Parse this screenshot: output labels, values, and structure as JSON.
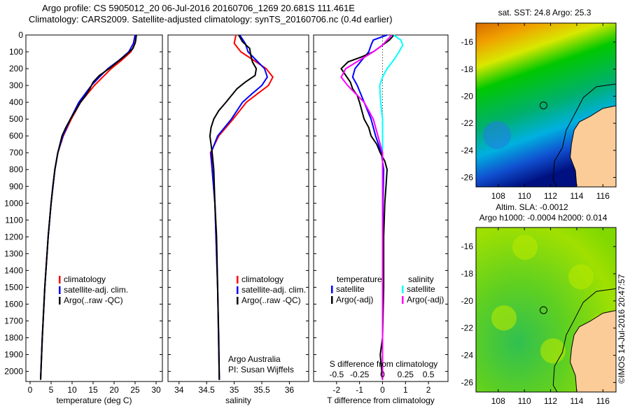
{
  "title": {
    "line1": "Argo profile: CS 5905012_20 06-Jul-2016 20160706_1269 20.681S 111.461E",
    "line2": "Climatology: CARS2009. Satellite-adjusted climatology: synTS_20160706.nc (0.4d earlier)"
  },
  "credit": "©IMOS 14-Jul-2016 20:47:57",
  "colors": {
    "clim": "#ff0000",
    "sat": "#0000ff",
    "argo": "#000000",
    "sal_sat": "#00ffff",
    "sal_argo": "#ff00ff"
  },
  "chart_data": [
    {
      "type": "line",
      "id": "temperature",
      "xlabel": "temperature (deg C)",
      "ylabel": "",
      "xlim": [
        -1,
        31.5
      ],
      "ylim": [
        2060,
        0
      ],
      "xticks": [
        "0",
        "5",
        "10",
        "15",
        "20",
        "25",
        "30"
      ],
      "xtick_values": [
        0,
        5,
        10,
        15,
        20,
        25,
        30
      ],
      "yticks": [
        "0",
        "100",
        "200",
        "300",
        "400",
        "500",
        "600",
        "700",
        "800",
        "900",
        "1000",
        "1100",
        "1200",
        "1300",
        "1400",
        "1500",
        "1600",
        "1700",
        "1800",
        "1900",
        "2000"
      ],
      "legend": [
        "climatology",
        "satellite-adj. clim.",
        "Argo(..raw -QC)"
      ],
      "series": [
        {
          "name": "climatology",
          "color": "#ff0000",
          "depth": [
            0,
            50,
            100,
            150,
            200,
            250,
            300,
            400,
            500,
            600,
            700,
            800,
            1000,
            1200,
            1500,
            1800,
            2050
          ],
          "values": [
            25.3,
            25.0,
            24.0,
            21.8,
            19.3,
            17.3,
            15.3,
            12.0,
            9.8,
            7.9,
            6.6,
            5.9,
            5.0,
            4.3,
            3.5,
            2.9,
            2.5
          ]
        },
        {
          "name": "satellite-adj. clim.",
          "color": "#0000ff",
          "depth": [
            0,
            50,
            100,
            150,
            200,
            250,
            300,
            400,
            500,
            600,
            700,
            800,
            1000,
            1200,
            1500,
            1800,
            2050
          ],
          "values": [
            25.0,
            24.6,
            23.5,
            21.2,
            18.5,
            16.5,
            14.6,
            11.6,
            9.6,
            7.8,
            6.6,
            5.9,
            5.0,
            4.3,
            3.5,
            2.9,
            2.5
          ]
        },
        {
          "name": "Argo(..raw -QC)",
          "color": "#000000",
          "depth": [
            0,
            40,
            80,
            120,
            160,
            200,
            240,
            280,
            320,
            360,
            400,
            450,
            500,
            550,
            600,
            650,
            700,
            800,
            900,
            1000,
            1200,
            1500,
            1800,
            2050
          ],
          "values": [
            25.3,
            25.1,
            24.5,
            22.8,
            20.8,
            18.8,
            16.5,
            15.0,
            14.2,
            13.2,
            12.0,
            10.8,
            9.6,
            8.5,
            7.6,
            7.1,
            6.6,
            5.9,
            5.4,
            5.0,
            4.3,
            3.5,
            2.9,
            2.5
          ]
        }
      ]
    },
    {
      "type": "line",
      "id": "salinity",
      "xlabel": "salinity",
      "ylabel": "",
      "xlim": [
        33.8,
        36.35
      ],
      "ylim": [
        2060,
        0
      ],
      "xticks": [
        "34",
        "34.5",
        "35",
        "35.5",
        "36"
      ],
      "xtick_values": [
        34,
        34.5,
        35,
        35.5,
        36
      ],
      "legend": [
        "climatology",
        "satellite-adj. clim.",
        "Argo(..raw -QC)"
      ],
      "annotation": [
        "Argo Australia",
        "PI: Susan Wijffels"
      ],
      "series": [
        {
          "name": "climatology",
          "color": "#ff0000",
          "depth": [
            0,
            50,
            100,
            150,
            200,
            250,
            300,
            350,
            400,
            500,
            600,
            700,
            800,
            1000,
            1500,
            2050
          ],
          "values": [
            35.03,
            35.0,
            35.12,
            35.35,
            35.58,
            35.7,
            35.62,
            35.42,
            35.22,
            34.98,
            34.72,
            34.57,
            34.6,
            34.65,
            34.7,
            34.73
          ]
        },
        {
          "name": "satellite-adj. clim.",
          "color": "#0000ff",
          "depth": [
            0,
            50,
            100,
            150,
            200,
            250,
            300,
            350,
            400,
            500,
            600,
            700,
            800,
            1000,
            1500,
            2050
          ],
          "values": [
            35.1,
            35.2,
            35.25,
            35.4,
            35.55,
            35.6,
            35.5,
            35.32,
            35.15,
            34.95,
            34.7,
            34.58,
            34.6,
            34.65,
            34.7,
            34.73
          ]
        },
        {
          "name": "Argo(..raw -QC)",
          "color": "#000000",
          "depth": [
            0,
            40,
            80,
            120,
            160,
            200,
            240,
            280,
            320,
            360,
            400,
            450,
            500,
            550,
            600,
            650,
            700,
            800,
            900,
            1000,
            1200,
            1500,
            1800,
            2050
          ],
          "values": [
            35.08,
            35.15,
            35.28,
            35.3,
            35.33,
            35.4,
            35.38,
            35.2,
            35.05,
            34.95,
            34.85,
            34.72,
            34.63,
            34.58,
            34.56,
            34.58,
            34.6,
            34.63,
            34.64,
            34.65,
            34.68,
            34.7,
            34.72,
            34.73
          ]
        }
      ]
    },
    {
      "type": "line",
      "id": "differences",
      "xlabel": "T difference from climatology",
      "x2label": "S difference from climatology",
      "xlim": [
        -3,
        2.85
      ],
      "ylim": [
        2060,
        0
      ],
      "xticks": [
        "-2",
        "-1",
        "0",
        "1",
        "2"
      ],
      "xtick_values": [
        -2,
        -1,
        0,
        1,
        2
      ],
      "x2ticks": [
        "-0.5",
        "-0.25",
        "0",
        "0.25",
        "0.5"
      ],
      "x2tick_values": [
        -0.5,
        -0.25,
        0,
        0.25,
        0.5
      ],
      "legend_headers": [
        "temperature",
        "salinity"
      ],
      "legend": [
        "satellite",
        "Argo(-adj)",
        "satellite",
        "Argo(-adj)"
      ],
      "series": [
        {
          "name": "T satellite",
          "color": "#0000ff",
          "scale": "T",
          "depth": [
            0,
            30,
            60,
            100,
            150,
            200,
            250,
            300,
            400,
            500,
            600,
            700,
            800,
            1000,
            1500,
            2050
          ],
          "values": [
            0.2,
            -0.4,
            -0.5,
            -0.6,
            -0.9,
            -1.2,
            -1.3,
            -1.1,
            -0.8,
            -0.5,
            -0.3,
            -0.05,
            0.05,
            0.02,
            0.0,
            0.0
          ]
        },
        {
          "name": "T Argo(-adj)",
          "color": "#000000",
          "scale": "T",
          "depth": [
            0,
            30,
            60,
            100,
            130,
            160,
            200,
            240,
            280,
            320,
            360,
            400,
            450,
            500,
            550,
            600,
            650,
            700,
            750,
            800,
            900,
            1000,
            1200,
            1500,
            1800,
            1900,
            2050
          ],
          "values": [
            0.5,
            0.3,
            0.0,
            -0.4,
            -0.9,
            -1.5,
            -1.8,
            -1.6,
            -1.4,
            -1.3,
            -1.1,
            -1.0,
            -0.9,
            -0.8,
            -0.6,
            -0.5,
            -0.25,
            -0.1,
            0.1,
            0.2,
            0.15,
            0.1,
            0.05,
            0.05,
            0.0,
            -0.1,
            0.0
          ]
        },
        {
          "name": "S satellite",
          "color": "#00ffff",
          "scale": "S",
          "depth": [
            0,
            30,
            60,
            100,
            150,
            200,
            250,
            300,
            400,
            500,
            700,
            1000,
            2050
          ],
          "values": [
            0.12,
            0.2,
            0.22,
            0.18,
            0.12,
            0.05,
            0.0,
            -0.03,
            -0.02,
            0.0,
            0.0,
            0.0,
            0.0
          ]
        },
        {
          "name": "S Argo(-adj)",
          "color": "#ff00ff",
          "scale": "S",
          "depth": [
            0,
            30,
            60,
            100,
            150,
            200,
            250,
            300,
            400,
            500,
            600,
            700,
            1000,
            2050
          ],
          "values": [
            0.1,
            0.05,
            0.0,
            -0.1,
            -0.25,
            -0.4,
            -0.45,
            -0.38,
            -0.2,
            -0.1,
            -0.05,
            0.0,
            0.0,
            0.0
          ]
        }
      ]
    },
    {
      "type": "heatmap",
      "id": "sst-map",
      "title": "sat. SST: 24.8 Argo: 25.3",
      "xlim": [
        106.3,
        117
      ],
      "ylim": [
        -26.7,
        -14.6
      ],
      "xticks": [
        "108",
        "110",
        "112",
        "114",
        "116"
      ],
      "xtick_values": [
        108,
        110,
        112,
        114,
        116
      ],
      "yticks": [
        "-16",
        "-18",
        "-20",
        "-22",
        "-24",
        "-26"
      ],
      "ytick_values": [
        -16,
        -18,
        -20,
        -22,
        -24,
        -26
      ],
      "argo_position": [
        111.461,
        -20.681
      ]
    },
    {
      "type": "heatmap",
      "id": "sla-map",
      "title": "Altim. SLA: -0.0012",
      "subtitle": "Argo h1000: -0.0004 h2000: 0.014",
      "xlim": [
        106.3,
        117
      ],
      "ylim": [
        -26.7,
        -14.6
      ],
      "xticks": [
        "108",
        "110",
        "112",
        "114",
        "116"
      ],
      "xtick_values": [
        108,
        110,
        112,
        114,
        116
      ],
      "yticks": [
        "-16",
        "-18",
        "-20",
        "-22",
        "-24",
        "-26"
      ],
      "ytick_values": [
        -16,
        -18,
        -20,
        -22,
        -24,
        -26
      ],
      "argo_position": [
        111.461,
        -20.681
      ]
    }
  ]
}
